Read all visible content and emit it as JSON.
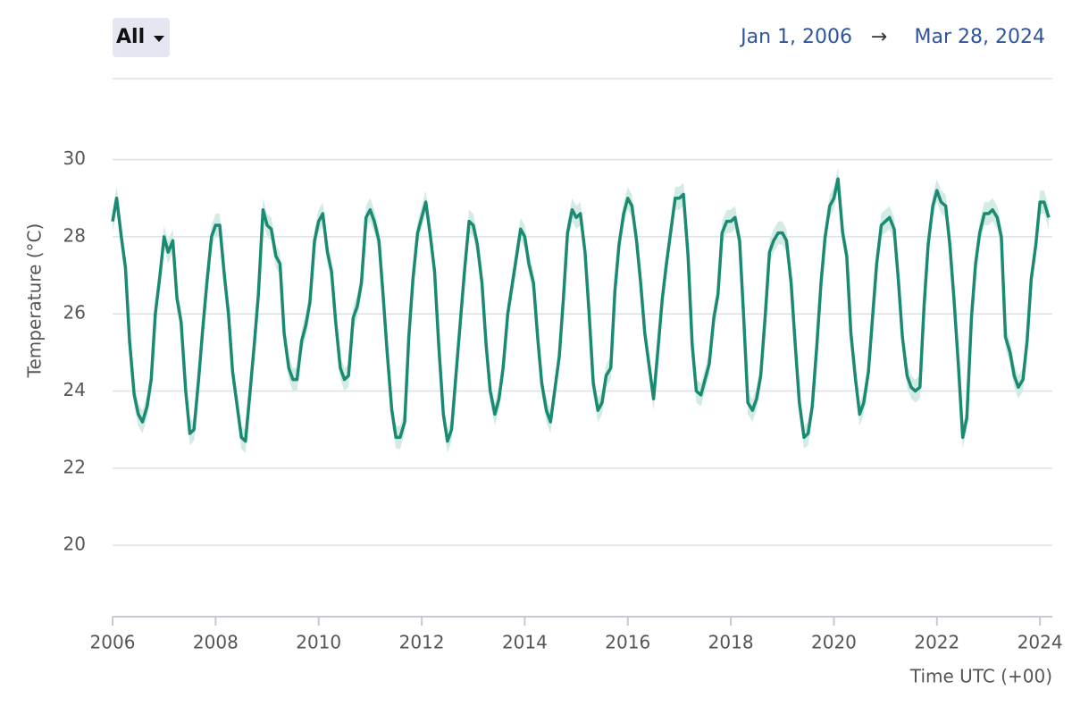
{
  "ui": {
    "range_select": "All",
    "start": "Jan 1, 2006",
    "arrow": "→",
    "end": "Mar 28, 2024"
  },
  "chart_data": {
    "type": "line",
    "y_label": "Temperature (°C)",
    "x_label": "Time UTC (+00)",
    "xlim": [
      2006,
      2024.24
    ],
    "xticks": [
      2006,
      2008,
      2010,
      2012,
      2014,
      2016,
      2018,
      2020,
      2022,
      2024
    ],
    "ylim": [
      18.15,
      32.1
    ],
    "yticks": [
      20,
      22,
      24,
      26,
      28,
      30
    ],
    "grid": true,
    "x": [
      2006,
      2006.08,
      2006.17,
      2006.25,
      2006.33,
      2006.42,
      2006.5,
      2006.58,
      2006.67,
      2006.75,
      2006.83,
      2006.92,
      2007,
      2007.08,
      2007.17,
      2007.25,
      2007.33,
      2007.42,
      2007.5,
      2007.58,
      2007.67,
      2007.75,
      2007.83,
      2007.92,
      2008,
      2008.08,
      2008.17,
      2008.25,
      2008.33,
      2008.42,
      2008.5,
      2008.58,
      2008.67,
      2008.75,
      2008.83,
      2008.92,
      2009,
      2009.08,
      2009.17,
      2009.25,
      2009.33,
      2009.42,
      2009.5,
      2009.58,
      2009.67,
      2009.75,
      2009.83,
      2009.92,
      2010,
      2010.08,
      2010.17,
      2010.25,
      2010.33,
      2010.42,
      2010.5,
      2010.58,
      2010.67,
      2010.75,
      2010.83,
      2010.92,
      2011,
      2011.08,
      2011.17,
      2011.25,
      2011.33,
      2011.42,
      2011.5,
      2011.58,
      2011.67,
      2011.75,
      2011.83,
      2011.92,
      2012,
      2012.08,
      2012.17,
      2012.25,
      2012.33,
      2012.42,
      2012.5,
      2012.58,
      2012.67,
      2012.75,
      2012.83,
      2012.92,
      2013,
      2013.08,
      2013.17,
      2013.25,
      2013.33,
      2013.42,
      2013.5,
      2013.58,
      2013.67,
      2013.75,
      2013.83,
      2013.92,
      2014,
      2014.08,
      2014.17,
      2014.25,
      2014.33,
      2014.42,
      2014.5,
      2014.58,
      2014.67,
      2014.75,
      2014.83,
      2014.92,
      2015,
      2015.08,
      2015.17,
      2015.25,
      2015.33,
      2015.42,
      2015.5,
      2015.58,
      2015.67,
      2015.75,
      2015.83,
      2015.92,
      2016,
      2016.08,
      2016.17,
      2016.25,
      2016.33,
      2016.42,
      2016.5,
      2016.58,
      2016.67,
      2016.75,
      2016.83,
      2016.92,
      2017,
      2017.08,
      2017.17,
      2017.25,
      2017.33,
      2017.42,
      2017.5,
      2017.58,
      2017.67,
      2017.75,
      2017.83,
      2017.92,
      2018,
      2018.08,
      2018.17,
      2018.25,
      2018.33,
      2018.42,
      2018.5,
      2018.58,
      2018.67,
      2018.75,
      2018.83,
      2018.92,
      2019,
      2019.08,
      2019.17,
      2019.25,
      2019.33,
      2019.42,
      2019.5,
      2019.58,
      2019.67,
      2019.75,
      2019.83,
      2019.92,
      2020,
      2020.08,
      2020.17,
      2020.25,
      2020.33,
      2020.42,
      2020.5,
      2020.58,
      2020.67,
      2020.75,
      2020.83,
      2020.92,
      2021,
      2021.08,
      2021.17,
      2021.25,
      2021.33,
      2021.42,
      2021.5,
      2021.58,
      2021.67,
      2021.75,
      2021.83,
      2021.92,
      2022,
      2022.08,
      2022.17,
      2022.25,
      2022.33,
      2022.42,
      2022.5,
      2022.58,
      2022.67,
      2022.75,
      2022.83,
      2022.92,
      2023,
      2023.08,
      2023.17,
      2023.25,
      2023.33,
      2023.42,
      2023.5,
      2023.58,
      2023.67,
      2023.75,
      2023.83,
      2023.92,
      2024,
      2024.08,
      2024.17
    ],
    "series": [
      {
        "color": "#1b8a72",
        "band_color": "#d3ebe5",
        "values": [
          28.4,
          29.0,
          28.0,
          27.2,
          25.3,
          23.9,
          23.4,
          23.2,
          23.6,
          24.3,
          26.0,
          27.0,
          28.0,
          27.6,
          27.9,
          26.4,
          25.8,
          24.0,
          22.9,
          23.0,
          24.3,
          25.6,
          26.8,
          28.0,
          28.3,
          28.3,
          27.0,
          26.0,
          24.5,
          23.6,
          22.8,
          22.7,
          24.0,
          25.2,
          26.5,
          28.7,
          28.3,
          28.2,
          27.5,
          27.3,
          25.5,
          24.6,
          24.3,
          24.3,
          25.3,
          25.7,
          26.3,
          27.9,
          28.4,
          28.6,
          27.6,
          27.1,
          25.8,
          24.6,
          24.3,
          24.4,
          25.9,
          26.2,
          26.8,
          28.5,
          28.7,
          28.4,
          27.9,
          26.5,
          25.0,
          23.5,
          22.8,
          22.8,
          23.2,
          25.4,
          26.9,
          28.1,
          28.5,
          28.9,
          28.0,
          27.1,
          25.2,
          23.4,
          22.7,
          23.0,
          24.5,
          25.8,
          27.1,
          28.4,
          28.3,
          27.8,
          26.8,
          25.2,
          24.0,
          23.4,
          23.8,
          24.6,
          26.0,
          26.7,
          27.4,
          28.2,
          28.0,
          27.3,
          26.8,
          25.4,
          24.2,
          23.5,
          23.2,
          24.0,
          24.9,
          26.4,
          28.1,
          28.7,
          28.5,
          28.6,
          27.6,
          26.0,
          24.2,
          23.5,
          23.7,
          24.4,
          24.6,
          26.6,
          27.8,
          28.6,
          29.0,
          28.8,
          27.9,
          26.8,
          25.5,
          24.6,
          23.8,
          25.0,
          26.4,
          27.3,
          28.1,
          29.0,
          29.0,
          29.1,
          27.5,
          25.2,
          24.0,
          23.9,
          24.3,
          24.7,
          25.9,
          26.5,
          28.1,
          28.4,
          28.4,
          28.5,
          27.9,
          25.9,
          23.7,
          23.5,
          23.8,
          24.4,
          26.0,
          27.6,
          27.9,
          28.1,
          28.1,
          27.9,
          26.8,
          25.2,
          23.7,
          22.8,
          22.9,
          23.6,
          25.2,
          26.8,
          28.0,
          28.8,
          29.0,
          29.5,
          28.1,
          27.5,
          25.5,
          24.3,
          23.4,
          23.7,
          24.5,
          25.9,
          27.3,
          28.3,
          28.4,
          28.5,
          28.2,
          26.9,
          25.4,
          24.4,
          24.1,
          24.0,
          24.1,
          26.2,
          27.8,
          28.8,
          29.2,
          28.9,
          28.8,
          27.8,
          26.4,
          24.6,
          22.8,
          23.3,
          25.9,
          27.3,
          28.1,
          28.6,
          28.6,
          28.7,
          28.5,
          28.0,
          25.4,
          25.0,
          24.4,
          24.1,
          24.3,
          25.3,
          26.9,
          27.8,
          28.9,
          28.9,
          28.5
        ],
        "lower": [
          28.1,
          28.7,
          27.7,
          26.9,
          25.0,
          23.6,
          23.1,
          22.9,
          23.3,
          24.0,
          25.7,
          26.7,
          27.7,
          27.3,
          27.6,
          26.1,
          25.5,
          23.7,
          22.6,
          22.7,
          24.0,
          25.3,
          26.5,
          27.7,
          28.0,
          28.0,
          26.7,
          25.7,
          24.2,
          23.3,
          22.5,
          22.4,
          23.7,
          24.9,
          26.2,
          28.4,
          28.0,
          27.9,
          27.2,
          27.0,
          25.2,
          24.3,
          24.0,
          24.0,
          25.0,
          25.4,
          26.0,
          27.6,
          28.1,
          28.3,
          27.3,
          26.8,
          25.5,
          24.3,
          24.0,
          24.1,
          25.6,
          25.9,
          26.5,
          28.2,
          28.4,
          28.1,
          27.6,
          26.2,
          24.7,
          23.2,
          22.5,
          22.5,
          22.9,
          25.1,
          26.6,
          27.8,
          28.2,
          28.6,
          27.7,
          26.8,
          24.9,
          23.1,
          22.4,
          22.7,
          24.2,
          25.5,
          26.8,
          28.1,
          28.0,
          27.5,
          26.5,
          24.9,
          23.7,
          23.1,
          23.5,
          24.3,
          25.7,
          26.4,
          27.1,
          27.9,
          27.7,
          27.0,
          26.5,
          25.1,
          23.9,
          23.2,
          22.9,
          23.7,
          24.6,
          26.1,
          27.8,
          28.4,
          28.2,
          28.3,
          27.3,
          25.7,
          23.9,
          23.2,
          23.4,
          24.1,
          24.3,
          26.3,
          27.5,
          28.3,
          28.7,
          28.5,
          27.6,
          26.5,
          25.2,
          24.3,
          23.5,
          24.7,
          26.1,
          27.0,
          27.8,
          28.7,
          28.7,
          28.8,
          27.2,
          24.9,
          23.7,
          23.6,
          24.0,
          24.4,
          25.6,
          26.2,
          27.8,
          28.1,
          28.1,
          28.2,
          27.6,
          25.6,
          23.4,
          23.2,
          23.5,
          24.1,
          25.7,
          27.3,
          27.6,
          27.8,
          27.8,
          27.6,
          26.5,
          24.9,
          23.4,
          22.5,
          22.6,
          23.3,
          24.9,
          26.5,
          27.7,
          28.5,
          28.7,
          29.2,
          27.8,
          27.2,
          25.2,
          24.0,
          23.1,
          23.4,
          24.2,
          25.6,
          27.0,
          28.0,
          28.1,
          28.2,
          27.9,
          26.6,
          25.1,
          24.1,
          23.8,
          23.7,
          23.8,
          25.9,
          27.5,
          28.5,
          28.9,
          28.6,
          28.5,
          27.5,
          26.1,
          24.3,
          22.5,
          23.0,
          25.6,
          27.0,
          27.8,
          28.3,
          28.3,
          28.4,
          28.2,
          27.7,
          25.1,
          24.7,
          24.1,
          23.8,
          24.0,
          25.0,
          26.6,
          27.5,
          28.6,
          28.6,
          28.2
        ],
        "upper": [
          28.7,
          29.3,
          28.3,
          27.5,
          25.6,
          24.2,
          23.7,
          23.5,
          23.9,
          24.6,
          26.3,
          27.3,
          28.3,
          27.9,
          28.2,
          26.7,
          26.1,
          24.3,
          23.2,
          23.3,
          24.6,
          25.9,
          27.1,
          28.3,
          28.6,
          28.6,
          27.3,
          26.3,
          24.8,
          23.9,
          23.1,
          23.0,
          24.3,
          25.5,
          26.8,
          29.0,
          28.6,
          28.5,
          27.8,
          27.6,
          25.8,
          24.9,
          24.6,
          24.6,
          25.6,
          26.0,
          26.6,
          28.2,
          28.7,
          28.9,
          27.9,
          27.4,
          26.1,
          24.9,
          24.6,
          24.7,
          26.2,
          26.5,
          27.1,
          28.8,
          29.0,
          28.7,
          28.2,
          26.8,
          25.3,
          23.8,
          23.1,
          23.1,
          23.5,
          25.7,
          27.2,
          28.4,
          28.8,
          29.2,
          28.3,
          27.4,
          25.5,
          23.7,
          23.0,
          23.3,
          24.8,
          26.1,
          27.4,
          28.7,
          28.6,
          28.1,
          27.1,
          25.5,
          24.3,
          23.7,
          24.1,
          24.9,
          26.3,
          27.0,
          27.7,
          28.5,
          28.3,
          27.6,
          27.1,
          25.7,
          24.5,
          23.8,
          23.5,
          24.3,
          25.2,
          26.7,
          28.4,
          29.0,
          28.8,
          28.9,
          27.9,
          26.3,
          24.5,
          23.8,
          24.0,
          24.7,
          24.9,
          26.9,
          28.1,
          28.9,
          29.3,
          29.1,
          28.2,
          27.1,
          25.8,
          24.9,
          24.1,
          25.3,
          26.7,
          27.6,
          28.4,
          29.3,
          29.3,
          29.4,
          27.8,
          25.5,
          24.3,
          24.2,
          24.6,
          25.0,
          26.2,
          26.8,
          28.4,
          28.7,
          28.7,
          28.8,
          28.2,
          26.2,
          24.0,
          23.8,
          24.1,
          24.7,
          26.3,
          27.9,
          28.2,
          28.4,
          28.4,
          28.2,
          27.1,
          25.5,
          24.0,
          23.1,
          23.2,
          23.9,
          25.5,
          27.1,
          28.3,
          29.1,
          29.3,
          29.8,
          28.4,
          27.8,
          25.8,
          24.6,
          23.7,
          24.0,
          24.8,
          26.2,
          27.6,
          28.6,
          28.7,
          28.8,
          28.5,
          27.2,
          25.7,
          24.7,
          24.4,
          24.3,
          24.4,
          26.5,
          28.1,
          29.1,
          29.5,
          29.2,
          29.1,
          28.1,
          26.7,
          24.9,
          23.1,
          23.6,
          26.2,
          27.6,
          28.4,
          28.9,
          28.9,
          29.0,
          28.8,
          28.3,
          25.7,
          25.3,
          24.7,
          24.4,
          24.6,
          25.6,
          27.2,
          28.1,
          29.2,
          29.2,
          28.8
        ]
      }
    ]
  }
}
